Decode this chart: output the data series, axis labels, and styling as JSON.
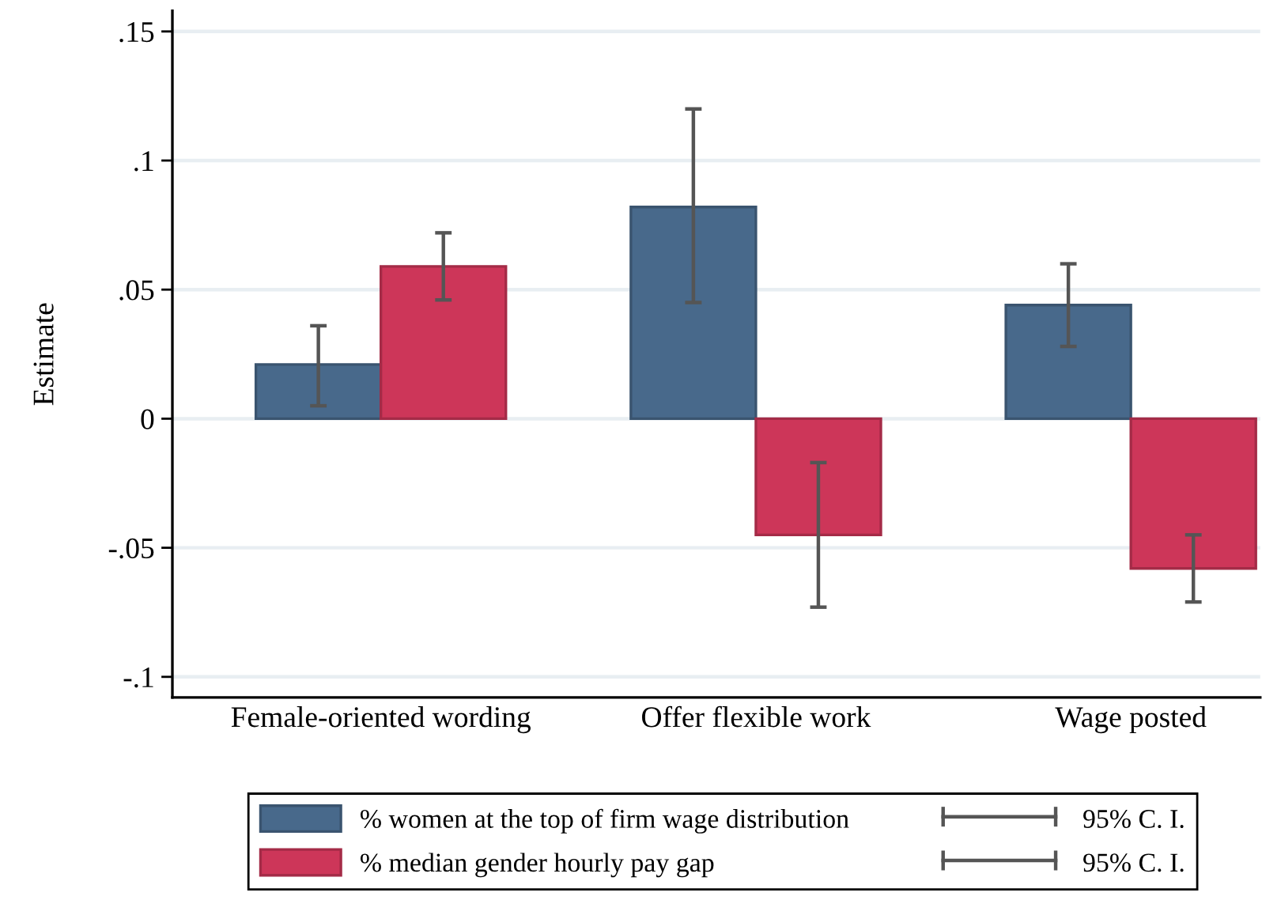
{
  "chart_data": {
    "type": "bar",
    "ylabel": "Estimate",
    "categories": [
      "Female-oriented wording",
      "Offer flexible work",
      "Wage posted"
    ],
    "series": [
      {
        "name": "% women at the top of firm wage distribution",
        "color": "#48698b",
        "values": [
          0.021,
          0.082,
          0.044
        ],
        "errors": [
          [
            0.005,
            0.036
          ],
          [
            0.045,
            0.12
          ],
          [
            0.028,
            0.06
          ]
        ]
      },
      {
        "name": "% median gender hourly pay gap",
        "color": "#cd3659",
        "values": [
          0.059,
          -0.045,
          -0.058
        ],
        "errors": [
          [
            0.046,
            0.072
          ],
          [
            -0.073,
            -0.017
          ],
          [
            -0.071,
            -0.045
          ]
        ]
      }
    ],
    "ylim": [
      -0.108,
      0.158
    ],
    "yticks": [
      {
        "value": -0.1,
        "label": "-.1"
      },
      {
        "value": -0.05,
        "label": "-.05"
      },
      0,
      {
        "value": 0.05,
        "label": ".05"
      },
      {
        "value": 0.1,
        "label": ".1"
      },
      {
        "value": 0.15,
        "label": ".15"
      }
    ],
    "grid": "y",
    "legend": "bottom",
    "annotations": [
      "95% C. I.",
      "95% C. I."
    ]
  }
}
